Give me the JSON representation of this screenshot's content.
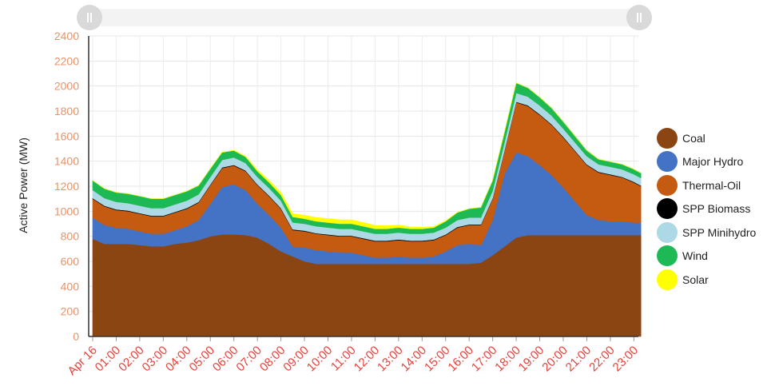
{
  "chart_data": {
    "type": "area",
    "stacked": true,
    "ylabel": "Active Power (MW)",
    "xlabel": "",
    "ylim": [
      0,
      2400
    ],
    "yticks": [
      0,
      200,
      400,
      600,
      800,
      1000,
      1200,
      1400,
      1600,
      1800,
      2000,
      2200,
      2400
    ],
    "xticks": [
      "Apr 16",
      "01:00",
      "02:00",
      "03:00",
      "04:00",
      "05:00",
      "06:00",
      "07:00",
      "08:00",
      "09:00",
      "10:00",
      "11:00",
      "12:00",
      "13:00",
      "14:00",
      "15:00",
      "16:00",
      "17:00",
      "18:00",
      "19:00",
      "20:00",
      "21:00",
      "22:00",
      "23:00"
    ],
    "x_hours": [
      0,
      0.5,
      1,
      1.5,
      2,
      2.5,
      3,
      3.5,
      4,
      4.5,
      5,
      5.5,
      6,
      6.5,
      7,
      7.5,
      8,
      8.5,
      9,
      9.5,
      10,
      10.5,
      11,
      11.5,
      12,
      12.5,
      13,
      13.5,
      14,
      14.5,
      15,
      15.5,
      16,
      16.5,
      17,
      17.5,
      18,
      18.5,
      19,
      19.5,
      20,
      20.5,
      21,
      21.5,
      22,
      22.5,
      23,
      23.3
    ],
    "grid": true,
    "legend_position": "right",
    "series": [
      {
        "name": "Coal",
        "color": "#8B4513",
        "values": [
          780,
          740,
          740,
          740,
          730,
          720,
          720,
          740,
          750,
          770,
          800,
          815,
          815,
          810,
          790,
          740,
          680,
          640,
          600,
          580,
          580,
          580,
          580,
          580,
          580,
          580,
          580,
          580,
          580,
          580,
          580,
          580,
          580,
          590,
          650,
          720,
          790,
          810,
          810,
          810,
          810,
          810,
          810,
          810,
          810,
          810,
          810,
          810
        ]
      },
      {
        "name": "Major Hydro",
        "color": "#4472C4",
        "values": [
          170,
          150,
          130,
          120,
          110,
          100,
          100,
          110,
          130,
          160,
          260,
          380,
          400,
          360,
          270,
          230,
          190,
          80,
          110,
          110,
          100,
          90,
          90,
          70,
          50,
          50,
          60,
          50,
          50,
          60,
          100,
          150,
          160,
          140,
          280,
          580,
          680,
          630,
          560,
          480,
          380,
          270,
          160,
          120,
          110,
          110,
          100,
          100
        ]
      },
      {
        "name": "Thermal-Oil",
        "color": "#C55A11",
        "values": [
          150,
          150,
          140,
          140,
          140,
          140,
          140,
          140,
          140,
          140,
          150,
          150,
          150,
          150,
          150,
          150,
          150,
          130,
          130,
          130,
          130,
          130,
          130,
          130,
          130,
          130,
          130,
          130,
          130,
          130,
          130,
          140,
          150,
          160,
          170,
          180,
          400,
          400,
          400,
          400,
          400,
          400,
          400,
          380,
          370,
          350,
          320,
          290
        ]
      },
      {
        "name": "SPP Biomass",
        "color": "#000000",
        "values": [
          5,
          5,
          5,
          5,
          5,
          5,
          5,
          5,
          5,
          5,
          5,
          5,
          5,
          5,
          5,
          5,
          5,
          5,
          5,
          5,
          5,
          5,
          5,
          5,
          5,
          5,
          5,
          5,
          5,
          5,
          5,
          5,
          5,
          5,
          5,
          5,
          5,
          5,
          5,
          5,
          5,
          5,
          5,
          5,
          5,
          5,
          5,
          5
        ]
      },
      {
        "name": "SPP Minihydro",
        "color": "#ADD8E6",
        "values": [
          65,
          60,
          60,
          60,
          60,
          60,
          60,
          60,
          60,
          60,
          60,
          60,
          60,
          60,
          60,
          60,
          60,
          55,
          55,
          55,
          55,
          55,
          55,
          55,
          55,
          55,
          55,
          55,
          55,
          55,
          55,
          55,
          55,
          55,
          60,
          65,
          70,
          70,
          70,
          70,
          65,
          65,
          65,
          60,
          60,
          60,
          60,
          60
        ]
      },
      {
        "name": "Wind",
        "color": "#1DB954",
        "values": [
          75,
          75,
          75,
          75,
          75,
          75,
          75,
          75,
          75,
          70,
          65,
          60,
          55,
          50,
          45,
          45,
          45,
          45,
          40,
          40,
          40,
          40,
          40,
          40,
          40,
          40,
          40,
          40,
          40,
          40,
          50,
          60,
          70,
          80,
          80,
          80,
          80,
          70,
          65,
          60,
          55,
          50,
          45,
          40,
          40,
          40,
          40,
          40
        ]
      },
      {
        "name": "Solar",
        "color": "#FFFF00",
        "values": [
          0,
          0,
          0,
          0,
          0,
          0,
          0,
          0,
          0,
          0,
          0,
          0,
          2,
          5,
          10,
          15,
          20,
          25,
          28,
          30,
          32,
          32,
          32,
          30,
          28,
          25,
          20,
          15,
          12,
          8,
          5,
          2,
          0,
          0,
          0,
          0,
          0,
          0,
          0,
          0,
          0,
          0,
          0,
          0,
          0,
          0,
          0,
          0
        ]
      }
    ]
  }
}
